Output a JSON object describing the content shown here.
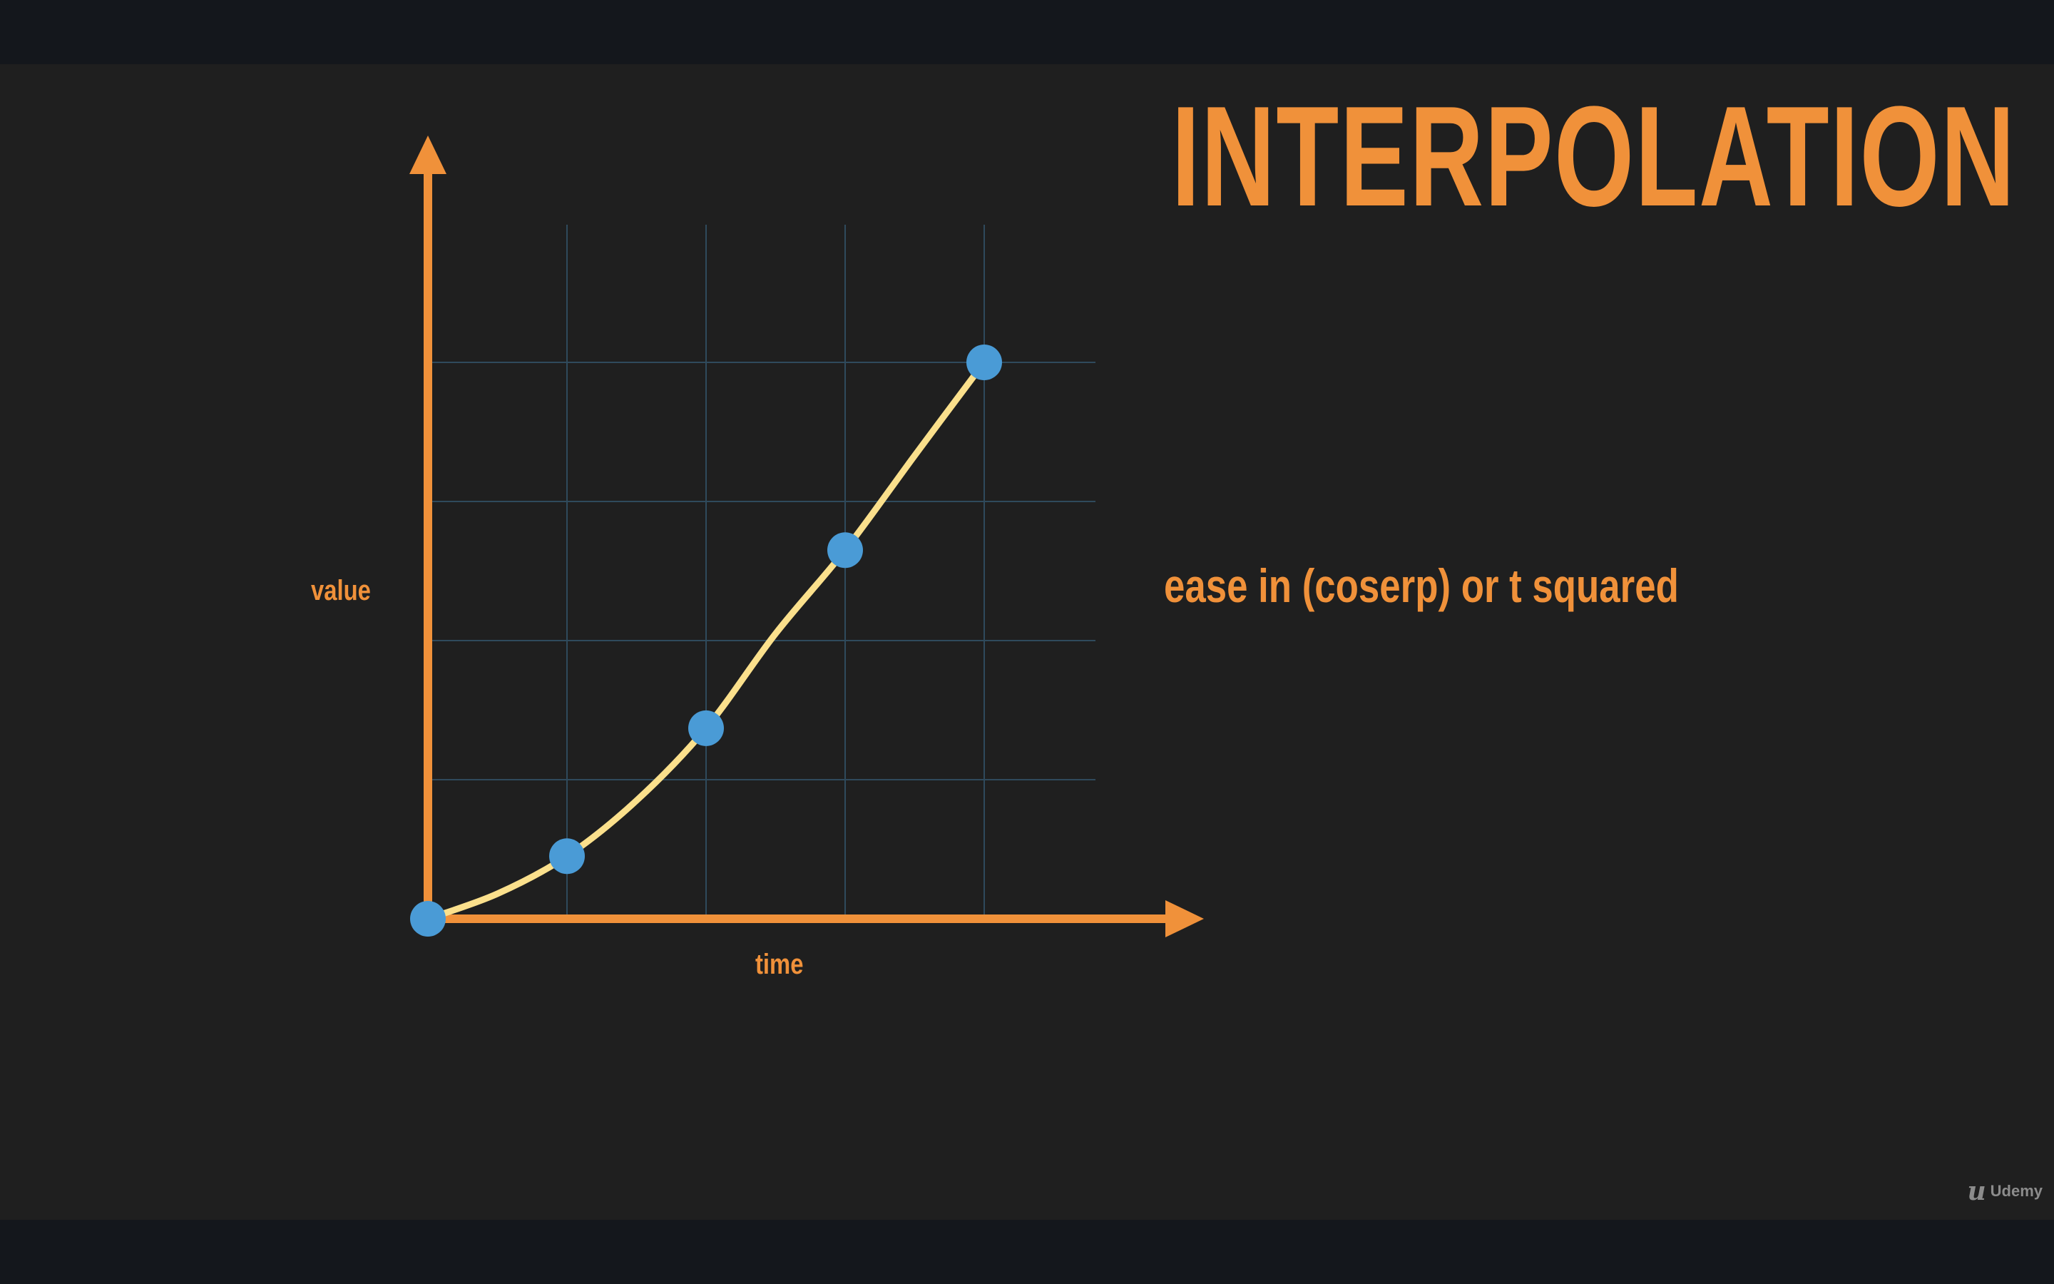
{
  "slide": {
    "title": "INTERPOLATION",
    "caption": "ease in (coserp) or t squared",
    "watermark": "Udemy",
    "watermark_icon": "udemy-logo-icon"
  },
  "colors": {
    "background": "#1f1f1f",
    "letterbox": "#14171c",
    "accent": "#f0913a",
    "curve": "#fbe08c",
    "points": "#4a9bd6",
    "grid": "#2f4a5c"
  },
  "chart_data": {
    "type": "line",
    "xlabel": "time",
    "ylabel": "value",
    "grid": true,
    "xlim": [
      0,
      5
    ],
    "ylim": [
      0,
      5
    ],
    "grid_x": [
      1,
      2,
      3,
      4
    ],
    "grid_y": [
      1,
      2,
      3,
      4
    ],
    "series": [
      {
        "curve": [
          [
            0,
            0
          ],
          [
            0.5,
            0.18
          ],
          [
            1,
            0.45
          ],
          [
            1.5,
            0.85
          ],
          [
            2,
            1.37
          ],
          [
            2.5,
            2.05
          ],
          [
            3,
            2.65
          ],
          [
            3.5,
            3.33
          ],
          [
            4,
            4.0
          ]
        ],
        "points": [
          {
            "x": 0,
            "y": 0
          },
          {
            "x": 1,
            "y": 0.45
          },
          {
            "x": 2,
            "y": 1.37
          },
          {
            "x": 3,
            "y": 2.65
          },
          {
            "x": 4,
            "y": 4.0
          }
        ]
      }
    ]
  }
}
